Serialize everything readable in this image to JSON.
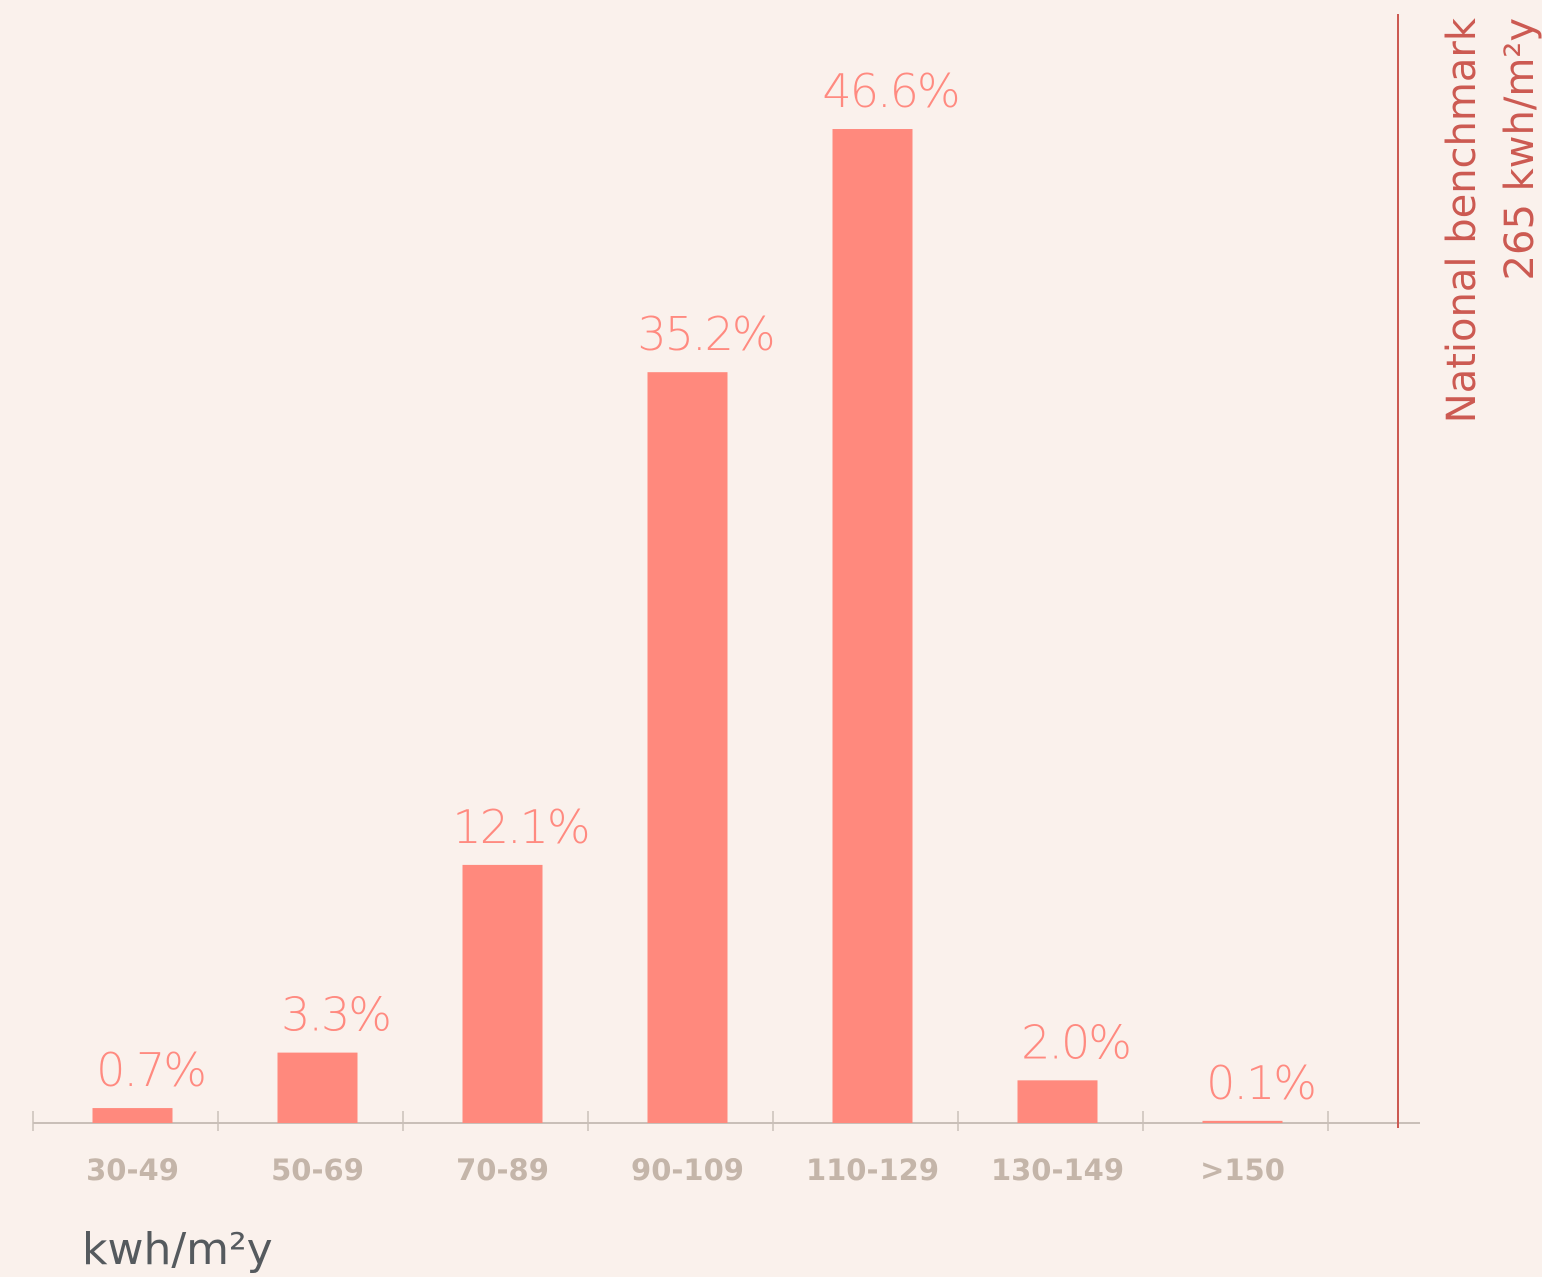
{
  "chart_data": {
    "type": "bar",
    "categories": [
      "30-49",
      "50-69",
      "70-89",
      "90-109",
      "110-129",
      "130-149",
      ">150"
    ],
    "values": [
      0.7,
      3.3,
      12.1,
      35.2,
      46.6,
      2.0,
      0.1
    ],
    "value_labels": [
      "0.7%",
      "3.3%",
      "12.1%",
      "35.2%",
      "46.6%",
      "2.0%",
      "0.1%"
    ],
    "color": "#ff897d",
    "x_label": "kwh/m²y",
    "annotations": [
      "National benchmark",
      "265 kwh/m²y"
    ]
  }
}
